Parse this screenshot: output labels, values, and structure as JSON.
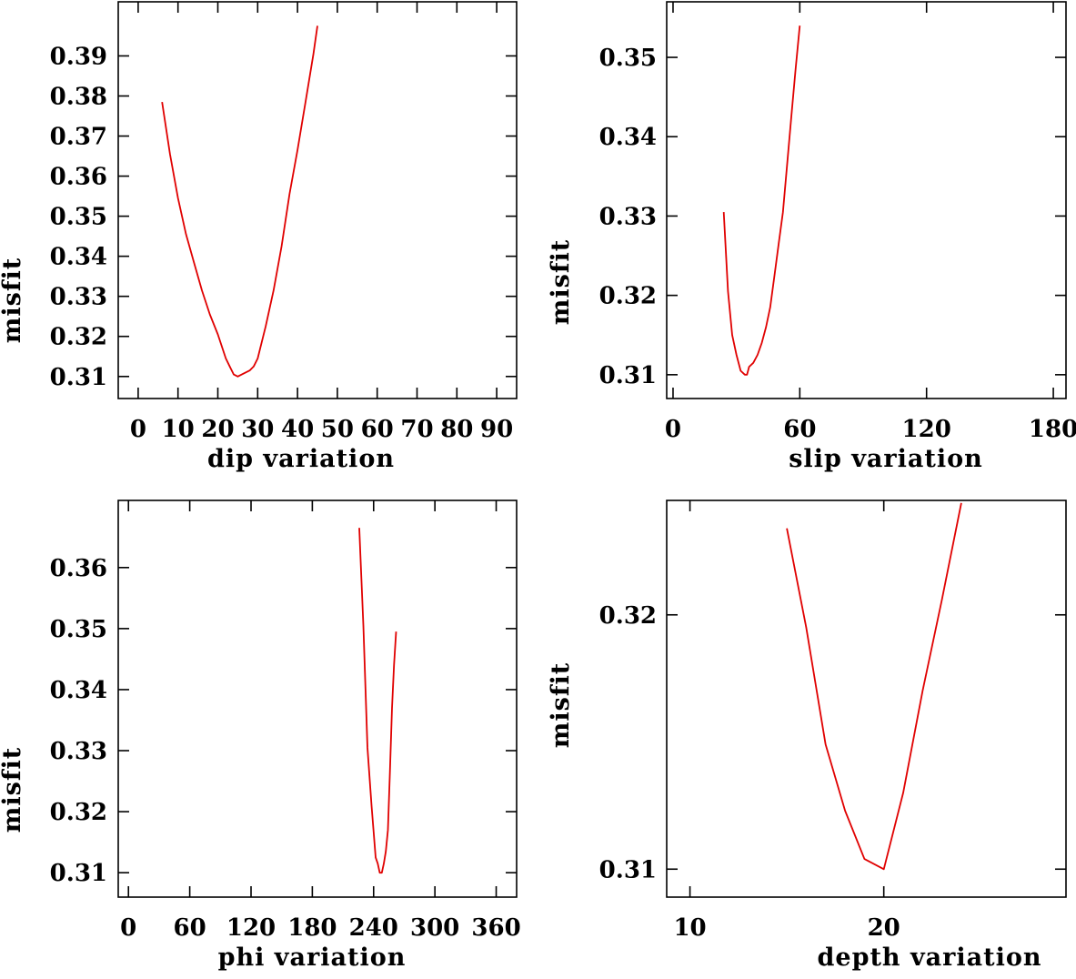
{
  "chart_data": [
    {
      "type": "line",
      "xlabel": "dip    variation",
      "ylabel": "misfit",
      "xlim": [
        -5,
        95
      ],
      "ylim": [
        0.3045,
        0.4035
      ],
      "xticks": [
        0,
        10,
        20,
        30,
        40,
        50,
        60,
        70,
        80,
        90
      ],
      "yticks": [
        0.31,
        0.32,
        0.33,
        0.34,
        0.35,
        0.36,
        0.37,
        0.38,
        0.39
      ],
      "ytick_labels": [
        "0.31",
        "0.32",
        "0.33",
        "0.34",
        "0.35",
        "0.36",
        "0.37",
        "0.38",
        "0.39"
      ],
      "series": [
        {
          "name": "dip",
          "color": "#e00000",
          "x": [
            6,
            8,
            10,
            12,
            14,
            16,
            18,
            20,
            22,
            23,
            24,
            25,
            26,
            28,
            29,
            30,
            32,
            34,
            36,
            38,
            40,
            42,
            44,
            45
          ],
          "y": [
            0.3785,
            0.3655,
            0.3545,
            0.3455,
            0.3385,
            0.3315,
            0.3255,
            0.3205,
            0.3145,
            0.3125,
            0.3105,
            0.31,
            0.3105,
            0.3115,
            0.3125,
            0.3145,
            0.3225,
            0.3315,
            0.3425,
            0.3555,
            0.3665,
            0.3785,
            0.3905,
            0.3975
          ]
        }
      ]
    },
    {
      "type": "line",
      "xlabel": "slip   variation",
      "ylabel": "misfit",
      "xlim": [
        -3,
        186
      ],
      "ylim": [
        0.307,
        0.357
      ],
      "xticks": [
        0,
        60,
        120,
        180
      ],
      "yticks": [
        0.31,
        0.32,
        0.33,
        0.34,
        0.35
      ],
      "ytick_labels": [
        "0.31",
        "0.32",
        "0.33",
        "0.34",
        "0.35"
      ],
      "series": [
        {
          "name": "slip",
          "color": "#e00000",
          "x": [
            24,
            26,
            28,
            30,
            32,
            34,
            35,
            36,
            38,
            40,
            42,
            44,
            46,
            48,
            50,
            52,
            54,
            56,
            58,
            60
          ],
          "y": [
            0.3305,
            0.3205,
            0.315,
            0.3125,
            0.3105,
            0.31,
            0.31,
            0.311,
            0.3115,
            0.3125,
            0.314,
            0.316,
            0.3185,
            0.3225,
            0.3265,
            0.3305,
            0.3365,
            0.3425,
            0.3485,
            0.354
          ]
        }
      ]
    },
    {
      "type": "line",
      "xlabel": "phi    variation",
      "ylabel": "misfit",
      "xlim": [
        -10,
        380
      ],
      "ylim": [
        0.306,
        0.371
      ],
      "xticks": [
        0,
        60,
        120,
        180,
        240,
        300,
        360
      ],
      "yticks": [
        0.31,
        0.32,
        0.33,
        0.34,
        0.35,
        0.36
      ],
      "ytick_labels": [
        "0.31",
        "0.32",
        "0.33",
        "0.34",
        "0.35",
        "0.36"
      ],
      "series": [
        {
          "name": "phi",
          "color": "#e00000",
          "x": [
            226,
            230,
            234,
            238,
            242,
            244,
            246,
            248,
            250,
            252,
            254,
            256,
            258,
            260,
            262
          ],
          "y": [
            0.3665,
            0.3505,
            0.3305,
            0.321,
            0.3125,
            0.3115,
            0.31,
            0.31,
            0.3115,
            0.3135,
            0.317,
            0.3265,
            0.337,
            0.344,
            0.3495
          ]
        }
      ]
    },
    {
      "type": "line",
      "xlabel": "depth  variation",
      "ylabel": "misfit",
      "xlim": [
        8.8,
        29.4
      ],
      "ylim": [
        0.3089,
        0.3245
      ],
      "xticks": [
        10,
        20
      ],
      "yticks": [
        0.31,
        0.32
      ],
      "ytick_labels": [
        "0.31",
        "0.32"
      ],
      "series": [
        {
          "name": "depth",
          "color": "#e00000",
          "x": [
            15,
            16,
            17,
            18,
            19,
            20,
            21,
            22,
            23,
            24
          ],
          "y": [
            0.3234,
            0.3195,
            0.3149,
            0.3123,
            0.3104,
            0.31,
            0.313,
            0.317,
            0.3206,
            0.3244
          ]
        }
      ]
    }
  ]
}
